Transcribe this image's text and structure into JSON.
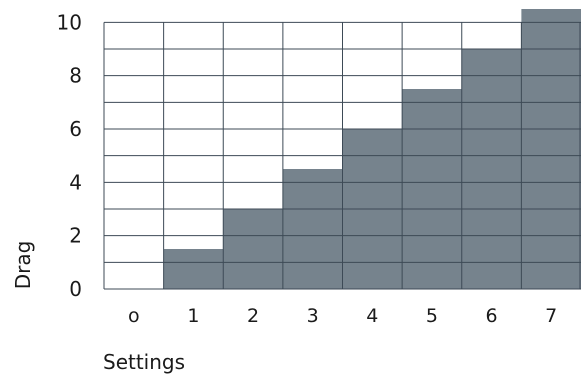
{
  "chart_data": {
    "type": "bar",
    "title": "",
    "xlabel": "Settings",
    "ylabel": "Drag",
    "categories": [
      "o",
      "1",
      "2",
      "3",
      "4",
      "5",
      "6",
      "7"
    ],
    "values": [
      0,
      1.5,
      3,
      4.5,
      6,
      7.5,
      9,
      10.5
    ],
    "yticks": [
      "0",
      "2",
      "4",
      "6",
      "8",
      "10"
    ],
    "ylim": [
      0,
      10.5
    ],
    "grid": true,
    "bar_color": "#76838d",
    "grid_color": "#3d4a56"
  }
}
